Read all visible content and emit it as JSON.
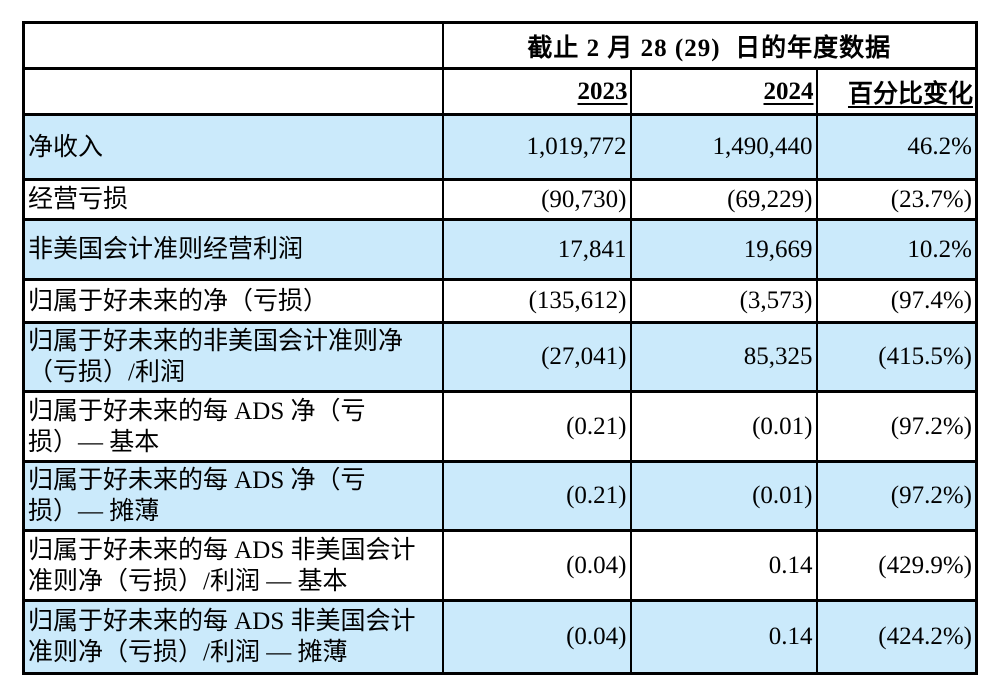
{
  "table": {
    "span_header": "截止 2 月 28 (29)  日的年度数据",
    "col_headers": [
      "2023",
      "2024",
      "百分比变化"
    ],
    "rows": [
      {
        "label": "净收入",
        "y2023": "1,019,772",
        "y2024": "1,490,440",
        "pct": "46.2%",
        "highlight": true
      },
      {
        "label": "经营亏损",
        "y2023": "(90,730)",
        "y2024": "(69,229)",
        "pct": "(23.7%)",
        "highlight": false
      },
      {
        "label": "非美国会计准则经营利润",
        "y2023": "17,841",
        "y2024": "19,669",
        "pct": "10.2%",
        "highlight": true
      },
      {
        "label": "归属于好未来的净（亏损）",
        "y2023": "(135,612)",
        "y2024": "(3,573)",
        "pct": "(97.4%)",
        "highlight": false
      },
      {
        "label": "归属于好未来的非美国会计准则净\n（亏损）/利润",
        "y2023": "(27,041)",
        "y2024": "85,325",
        "pct": "(415.5%)",
        "highlight": true
      },
      {
        "label": "归属于好未来的每 ADS 净（亏\n损）— 基本",
        "y2023": "(0.21)",
        "y2024": "(0.01)",
        "pct": "(97.2%)",
        "highlight": false
      },
      {
        "label": "归属于好未来的每 ADS 净（亏\n损）— 摊薄",
        "y2023": "(0.21)",
        "y2024": "(0.01)",
        "pct": "(97.2%)",
        "highlight": true
      },
      {
        "label": "归属于好未来的每 ADS 非美国会计\n准则净（亏损）/利润 — 基本",
        "y2023": "(0.04)",
        "y2024": "0.14",
        "pct": "(429.9%)",
        "highlight": false
      },
      {
        "label": "归属于好未来的每 ADS 非美国会计\n准则净（亏损）/利润 — 摊薄",
        "y2023": "(0.04)",
        "y2024": "0.14",
        "pct": "(424.2%)",
        "highlight": true
      }
    ],
    "colors": {
      "highlight": "#CBEAFB",
      "border": "#000000",
      "text": "#000000"
    }
  }
}
